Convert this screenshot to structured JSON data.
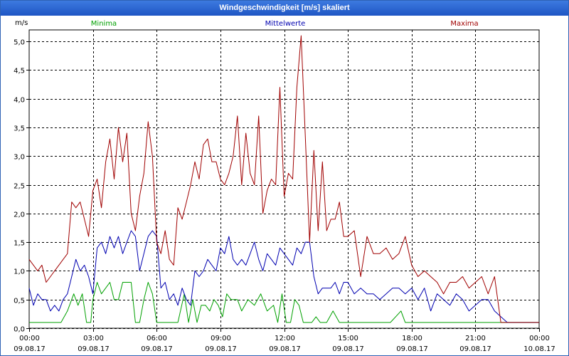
{
  "window": {
    "title": "Windgeschwindigkeit [m/s] skaliert"
  },
  "chart_data": {
    "type": "line",
    "title": "Windgeschwindigkeit [m/s] skaliert",
    "ylabel": "m/s",
    "ylim": [
      0,
      5.2
    ],
    "xlim": [
      0,
      24
    ],
    "grid": true,
    "legend": "top",
    "y_ticks": [
      {
        "value": 0.0,
        "label": "0,0"
      },
      {
        "value": 0.5,
        "label": "0,5"
      },
      {
        "value": 1.0,
        "label": "1,0"
      },
      {
        "value": 1.5,
        "label": "1,5"
      },
      {
        "value": 2.0,
        "label": "2,0"
      },
      {
        "value": 2.5,
        "label": "2,5"
      },
      {
        "value": 3.0,
        "label": "3,0"
      },
      {
        "value": 3.5,
        "label": "3,5"
      },
      {
        "value": 4.0,
        "label": "4,0"
      },
      {
        "value": 4.5,
        "label": "4,5"
      },
      {
        "value": 5.0,
        "label": "5,0"
      }
    ],
    "x_ticks": [
      {
        "value": 0,
        "time": "00:00",
        "date": "09.08.17"
      },
      {
        "value": 3,
        "time": "03:00",
        "date": "09.08.17"
      },
      {
        "value": 6,
        "time": "06:00",
        "date": "09.08.17"
      },
      {
        "value": 9,
        "time": "09:00",
        "date": "09.08.17"
      },
      {
        "value": 12,
        "time": "12:00",
        "date": "09.08.17"
      },
      {
        "value": 15,
        "time": "15:00",
        "date": "09.08.17"
      },
      {
        "value": 18,
        "time": "18:00",
        "date": "09.08.17"
      },
      {
        "value": 21,
        "time": "21:00",
        "date": "09.08.17"
      },
      {
        "value": 24,
        "time": "00:00",
        "date": "10.08.17"
      }
    ],
    "series": [
      {
        "name": "Minima",
        "color": "#00a000",
        "x": [
          0,
          1.5,
          1.8,
          2.1,
          2.3,
          2.5,
          2.7,
          2.9,
          3.0,
          3.2,
          3.4,
          3.6,
          3.8,
          4.0,
          4.2,
          4.4,
          4.6,
          4.8,
          5.0,
          5.2,
          5.4,
          5.6,
          5.8,
          6.0,
          6.5,
          7.0,
          7.3,
          7.5,
          7.7,
          7.9,
          8.1,
          8.3,
          8.5,
          8.7,
          8.9,
          9.1,
          9.3,
          9.5,
          9.8,
          10.0,
          10.3,
          10.6,
          10.9,
          11.2,
          11.5,
          11.7,
          11.9,
          12.1,
          12.3,
          12.5,
          12.7,
          12.9,
          13.1,
          13.3,
          13.5,
          13.7,
          14.0,
          14.3,
          14.6,
          15.0,
          16.0,
          17.0,
          17.5,
          17.7,
          17.9,
          18.5,
          19.0,
          20.0,
          21.0,
          22.0,
          22.5,
          23.0,
          24.0
        ],
        "values": [
          0.1,
          0.1,
          0.3,
          0.6,
          0.4,
          0.6,
          0.1,
          0.1,
          0.5,
          0.8,
          0.6,
          0.7,
          0.8,
          0.5,
          0.5,
          0.8,
          0.8,
          0.8,
          0.1,
          0.1,
          0.5,
          0.8,
          0.6,
          0.1,
          0.1,
          0.1,
          0.6,
          0.1,
          0.5,
          0.1,
          0.4,
          0.4,
          0.3,
          0.5,
          0.4,
          0.2,
          0.6,
          0.5,
          0.5,
          0.3,
          0.5,
          0.4,
          0.6,
          0.3,
          0.4,
          0.1,
          0.6,
          0.1,
          0.1,
          0.5,
          0.4,
          0.1,
          0.1,
          0.1,
          0.2,
          0.1,
          0.1,
          0.3,
          0.1,
          0.1,
          0.1,
          0.1,
          0.3,
          0.1,
          0.1,
          0.1,
          0.1,
          0.1,
          0.1,
          0.1,
          0.1,
          0.1,
          0.1
        ]
      },
      {
        "name": "Mittelwerte",
        "color": "#0000b0",
        "x": [
          0,
          0.2,
          0.4,
          0.6,
          0.8,
          1.0,
          1.2,
          1.4,
          1.6,
          1.8,
          2.0,
          2.2,
          2.4,
          2.6,
          2.8,
          3.0,
          3.2,
          3.4,
          3.6,
          3.8,
          4.0,
          4.2,
          4.4,
          4.6,
          4.8,
          5.0,
          5.2,
          5.4,
          5.6,
          5.8,
          6.0,
          6.2,
          6.4,
          6.6,
          6.8,
          7.0,
          7.2,
          7.4,
          7.6,
          7.8,
          8.0,
          8.2,
          8.4,
          8.6,
          8.8,
          9.0,
          9.2,
          9.4,
          9.6,
          9.8,
          10.0,
          10.2,
          10.4,
          10.6,
          10.8,
          11.0,
          11.2,
          11.4,
          11.6,
          11.8,
          12.0,
          12.2,
          12.4,
          12.6,
          12.8,
          13.0,
          13.2,
          13.4,
          13.6,
          13.8,
          14.0,
          14.2,
          14.4,
          14.6,
          14.8,
          15.0,
          15.3,
          15.6,
          15.9,
          16.2,
          16.5,
          16.8,
          17.1,
          17.4,
          17.7,
          18.0,
          18.3,
          18.6,
          18.9,
          19.2,
          19.5,
          19.8,
          20.1,
          20.4,
          20.7,
          21.0,
          21.3,
          21.6,
          21.9,
          22.2,
          22.5,
          23.0,
          24.0
        ],
        "values": [
          0.7,
          0.4,
          0.6,
          0.5,
          0.5,
          0.3,
          0.4,
          0.3,
          0.5,
          0.6,
          0.9,
          1.2,
          1.0,
          1.1,
          0.9,
          0.6,
          1.4,
          1.5,
          1.3,
          1.6,
          1.4,
          1.6,
          1.3,
          1.5,
          1.7,
          1.6,
          1.0,
          1.3,
          1.6,
          1.7,
          1.6,
          0.7,
          0.8,
          0.5,
          0.6,
          0.4,
          0.7,
          0.5,
          0.4,
          1.0,
          0.9,
          1.0,
          1.2,
          1.1,
          1.0,
          1.4,
          1.3,
          1.6,
          1.2,
          1.1,
          1.2,
          1.1,
          1.3,
          1.5,
          1.2,
          1.0,
          1.3,
          1.2,
          1.1,
          1.4,
          1.3,
          1.2,
          1.1,
          1.4,
          1.3,
          1.5,
          1.5,
          0.9,
          0.6,
          0.7,
          0.7,
          0.7,
          0.8,
          0.6,
          0.8,
          0.8,
          0.6,
          0.7,
          0.6,
          0.6,
          0.5,
          0.6,
          0.7,
          0.7,
          0.6,
          0.7,
          0.5,
          0.7,
          0.3,
          0.6,
          0.5,
          0.4,
          0.6,
          0.5,
          0.3,
          0.4,
          0.5,
          0.5,
          0.3,
          0.2,
          0.1,
          0.1,
          0.1
        ]
      },
      {
        "name": "Maxima",
        "color": "#a00000",
        "x": [
          0,
          0.2,
          0.4,
          0.6,
          0.8,
          1.0,
          1.2,
          1.4,
          1.6,
          1.8,
          2.0,
          2.2,
          2.4,
          2.6,
          2.8,
          3.0,
          3.2,
          3.4,
          3.6,
          3.8,
          4.0,
          4.2,
          4.4,
          4.6,
          4.8,
          5.0,
          5.2,
          5.4,
          5.6,
          5.8,
          6.0,
          6.2,
          6.4,
          6.6,
          6.8,
          7.0,
          7.2,
          7.4,
          7.6,
          7.8,
          8.0,
          8.2,
          8.4,
          8.6,
          8.8,
          9.0,
          9.2,
          9.4,
          9.6,
          9.8,
          10.0,
          10.2,
          10.4,
          10.6,
          10.8,
          11.0,
          11.2,
          11.4,
          11.6,
          11.8,
          12.0,
          12.2,
          12.4,
          12.6,
          12.8,
          13.0,
          13.2,
          13.4,
          13.6,
          13.8,
          14.0,
          14.2,
          14.4,
          14.6,
          14.8,
          15.0,
          15.3,
          15.6,
          15.9,
          16.2,
          16.5,
          16.8,
          17.1,
          17.4,
          17.7,
          18.0,
          18.3,
          18.6,
          18.9,
          19.2,
          19.5,
          19.8,
          20.1,
          20.4,
          20.7,
          21.0,
          21.3,
          21.6,
          21.9,
          22.2,
          22.5,
          23.0,
          24.0
        ],
        "values": [
          1.2,
          1.1,
          1.0,
          1.1,
          0.8,
          0.9,
          1.0,
          1.1,
          1.2,
          1.3,
          2.2,
          2.1,
          2.2,
          1.9,
          1.6,
          2.4,
          2.6,
          2.1,
          2.9,
          3.3,
          2.6,
          3.5,
          2.9,
          3.4,
          2.0,
          1.7,
          2.3,
          2.7,
          3.6,
          3.0,
          1.5,
          1.3,
          1.7,
          1.2,
          1.1,
          2.1,
          1.9,
          2.2,
          2.5,
          2.9,
          2.6,
          3.2,
          3.3,
          2.9,
          2.9,
          2.6,
          2.5,
          2.7,
          3.0,
          3.7,
          2.5,
          3.4,
          2.7,
          2.5,
          3.7,
          2.0,
          2.4,
          2.6,
          2.5,
          4.2,
          2.3,
          2.7,
          2.6,
          4.2,
          5.1,
          3.3,
          1.5,
          3.1,
          1.7,
          2.9,
          1.7,
          1.9,
          1.9,
          2.2,
          1.6,
          1.6,
          1.7,
          0.9,
          1.6,
          1.3,
          1.3,
          1.4,
          1.2,
          1.3,
          1.6,
          1.1,
          0.9,
          1.0,
          0.9,
          0.8,
          0.6,
          0.8,
          0.8,
          0.9,
          0.7,
          0.8,
          0.9,
          0.6,
          0.9,
          0.1,
          0.1,
          0.1,
          0.1
        ]
      }
    ]
  }
}
